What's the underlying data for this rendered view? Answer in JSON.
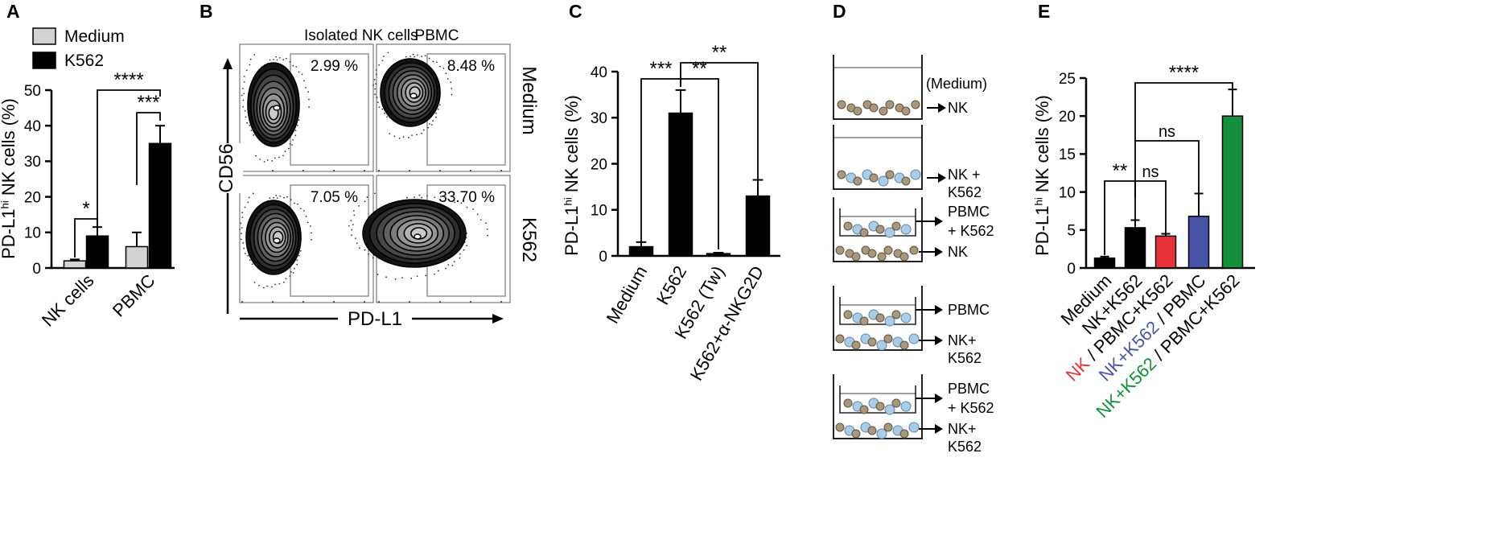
{
  "colors": {
    "black_bar": "#000000",
    "grey_bar": "#d3d3d3",
    "red": "#e8323a",
    "blue": "#4854a8",
    "green": "#14903c",
    "frame": "#777777"
  },
  "panels": {
    "A": {
      "letter": "A",
      "legend": [
        "Medium",
        "K562"
      ],
      "ylabel_main": "PD-L1",
      "ylabel_sup": "hi",
      "ylabel_rest": " NK cells (%)",
      "yticks": [
        "0",
        "10",
        "20",
        "30",
        "40",
        "50"
      ],
      "categories": [
        "NK cells",
        "PBMC"
      ],
      "sig": [
        "*",
        "***",
        "****"
      ]
    },
    "B": {
      "letter": "B",
      "col_titles": [
        "Isolated NK cells",
        "PBMC"
      ],
      "row_labels": [
        "Medium",
        "K562"
      ],
      "percents": [
        "2.99 %",
        "8.48 %",
        "7.05 %",
        "33.70 %"
      ],
      "yaxis": "CD56",
      "xaxis": "PD-L1"
    },
    "C": {
      "letter": "C",
      "ylabel_main": "PD-L1",
      "ylabel_sup": "hi",
      "ylabel_rest": " NK cells (%)",
      "yticks": [
        "0",
        "10",
        "20",
        "30",
        "40"
      ],
      "categories": [
        "Medium",
        "K562",
        "K562 (Tw)",
        "K562+α-NKG2D"
      ],
      "sig": [
        "***",
        "**",
        "**"
      ]
    },
    "D": {
      "letter": "D",
      "wells": [
        {
          "top_label": "(Medium)",
          "lines": [
            "NK"
          ]
        },
        {
          "lines": [
            "NK +",
            "K562"
          ]
        },
        {
          "upper": [
            "PBMC",
            "+ K562"
          ],
          "lower": [
            "NK"
          ],
          "lower_color": "red"
        },
        {
          "upper": [
            "PBMC"
          ],
          "lower": [
            "NK+",
            "K562"
          ],
          "lower_color": "blue"
        },
        {
          "upper": [
            "PBMC",
            "+ K562"
          ],
          "lower": [
            "NK+",
            "K562"
          ],
          "lower_color": "green"
        }
      ]
    },
    "E": {
      "letter": "E",
      "ylabel_main": "PD-L1",
      "ylabel_sup": "hi",
      "ylabel_rest": " NK cells (%)",
      "yticks": [
        "0",
        "5",
        "10",
        "15",
        "20",
        "25"
      ],
      "xlabels": [
        [
          {
            "t": "Medium",
            "c": "black"
          }
        ],
        [
          {
            "t": "NK+K562",
            "c": "black"
          }
        ],
        [
          {
            "t": "NK",
            "c": "red"
          },
          {
            "t": " / PBMC+K562",
            "c": "black"
          }
        ],
        [
          {
            "t": "NK+K562",
            "c": "blue"
          },
          {
            "t": " / PBMC",
            "c": "black"
          }
        ],
        [
          {
            "t": "NK+K562",
            "c": "green"
          },
          {
            "t": " / PBMC+K562",
            "c": "black"
          }
        ]
      ],
      "sig": [
        "**",
        "ns",
        "ns",
        "****"
      ]
    }
  },
  "chart_data": [
    {
      "type": "bar",
      "panel": "A",
      "categories": [
        "NK cells",
        "PBMC"
      ],
      "ylabel": "PD-L1hi NK cells (%)",
      "ylim": [
        0,
        50
      ],
      "series": [
        {
          "name": "Medium",
          "values": [
            2,
            6
          ],
          "errors": [
            0.4,
            4
          ]
        },
        {
          "name": "K562",
          "values": [
            9,
            35
          ],
          "errors": [
            2.5,
            5
          ]
        }
      ]
    },
    {
      "type": "bar",
      "panel": "C",
      "categories": [
        "Medium",
        "K562",
        "K562 (Tw)",
        "K562+α-NKG2D"
      ],
      "ylabel": "PD-L1hi NK cells (%)",
      "ylim": [
        0,
        40
      ],
      "values": [
        2,
        31,
        0.5,
        13
      ],
      "errors": [
        1,
        5,
        0.2,
        3.5
      ]
    },
    {
      "type": "bar",
      "panel": "E",
      "categories": [
        "Medium",
        "NK+K562",
        "NK / PBMC+K562",
        "NK+K562 / PBMC",
        "NK+K562 / PBMC+K562"
      ],
      "ylabel": "PD-L1hi NK cells (%)",
      "ylim": [
        0,
        25
      ],
      "values": [
        1.3,
        5.3,
        4.2,
        6.8,
        20
      ],
      "errors": [
        0.2,
        1,
        0.3,
        3,
        3.5
      ]
    }
  ]
}
